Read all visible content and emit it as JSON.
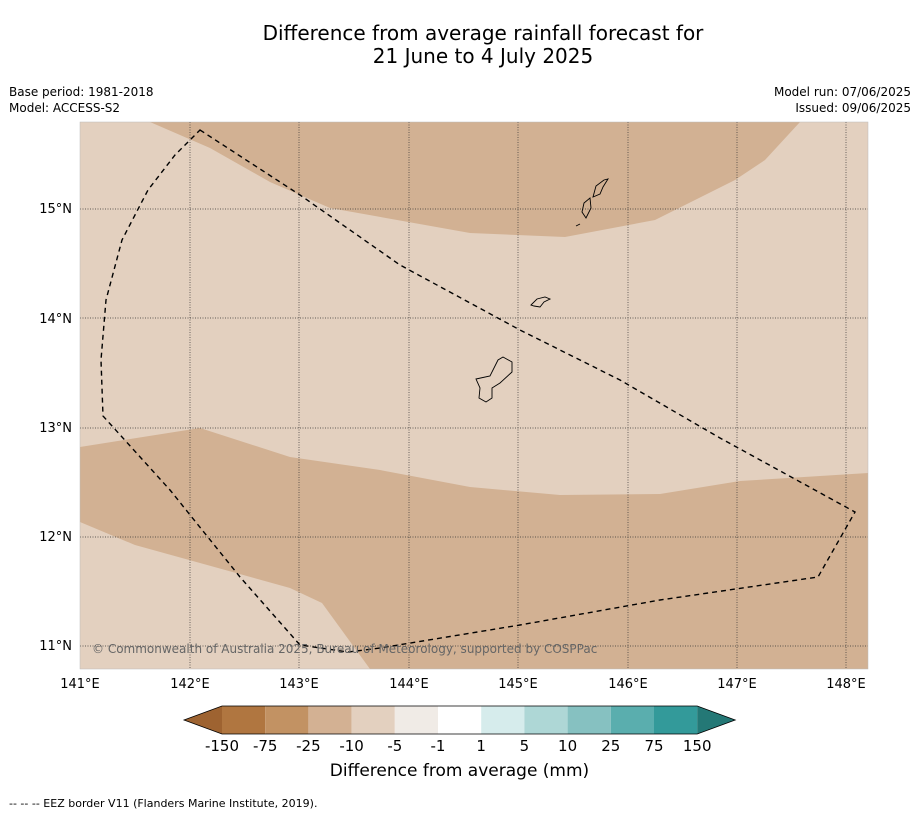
{
  "title_line1": "Difference from average rainfall forecast for",
  "title_line2": "21 June to 4 July 2025",
  "meta": {
    "base_period": "Base period: 1981-2018",
    "model": "Model: ACCESS-S2",
    "model_run": "Model run: 07/06/2025",
    "issued": "Issued: 09/06/2025"
  },
  "map": {
    "lon_ticks": [
      "141°E",
      "142°E",
      "143°E",
      "144°E",
      "145°E",
      "146°E",
      "147°E",
      "148°E"
    ],
    "lat_ticks": [
      "15°N",
      "14°N",
      "13°N",
      "12°N",
      "11°N"
    ],
    "copyright": "© Commonwealth of Australia 2025, Bureau of Meteorology, supported by COSPPac",
    "ocean_color": "#e3d0bf",
    "drier_color": "#d2b193"
  },
  "colorbar": {
    "labels": [
      "-150",
      "-75",
      "-25",
      "-10",
      "-5",
      "-1",
      "1",
      "5",
      "10",
      "25",
      "75",
      "150"
    ],
    "colors": [
      "#9e6331",
      "#b07640",
      "#c29263",
      "#d3b193",
      "#e3d0bf",
      "#f0ebe6",
      "#ffffff",
      "#d6ecec",
      "#aed7d6",
      "#86c1c1",
      "#5aaeae",
      "#339a9a",
      "#247876"
    ],
    "title": "Difference from average (mm)"
  },
  "footnote": "-- -- -- EEZ border V11 (Flanders Marine Institute, 2019)."
}
